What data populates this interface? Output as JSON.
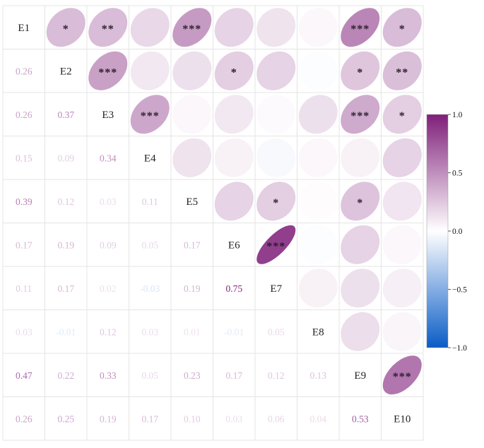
{
  "chart_data": {
    "type": "heatmap",
    "variables": [
      "E1",
      "E2",
      "E3",
      "E4",
      "E5",
      "E6",
      "E7",
      "E8",
      "E9",
      "E10"
    ],
    "coefficient_cells": [
      {
        "row": 2,
        "col": 1,
        "label": "0.26"
      },
      {
        "row": 3,
        "col": 1,
        "label": "0.26"
      },
      {
        "row": 3,
        "col": 2,
        "label": "0.37"
      },
      {
        "row": 4,
        "col": 1,
        "label": "0.15"
      },
      {
        "row": 4,
        "col": 2,
        "label": "0.09"
      },
      {
        "row": 4,
        "col": 3,
        "label": "0.34"
      },
      {
        "row": 5,
        "col": 1,
        "label": "0.39"
      },
      {
        "row": 5,
        "col": 2,
        "label": "0.12"
      },
      {
        "row": 5,
        "col": 3,
        "label": "0.03"
      },
      {
        "row": 5,
        "col": 4,
        "label": "0.11"
      },
      {
        "row": 6,
        "col": 1,
        "label": "0.17"
      },
      {
        "row": 6,
        "col": 2,
        "label": "0.19"
      },
      {
        "row": 6,
        "col": 3,
        "label": "0.09"
      },
      {
        "row": 6,
        "col": 4,
        "label": "0.05"
      },
      {
        "row": 6,
        "col": 5,
        "label": "0.17"
      },
      {
        "row": 7,
        "col": 1,
        "label": "0.11"
      },
      {
        "row": 7,
        "col": 2,
        "label": "0.17"
      },
      {
        "row": 7,
        "col": 3,
        "label": "0.02"
      },
      {
        "row": 7,
        "col": 4,
        "label": "-0.03"
      },
      {
        "row": 7,
        "col": 5,
        "label": "0.19"
      },
      {
        "row": 7,
        "col": 6,
        "label": "0.75"
      },
      {
        "row": 8,
        "col": 1,
        "label": "0.03"
      },
      {
        "row": 8,
        "col": 2,
        "label": "-0.01"
      },
      {
        "row": 8,
        "col": 3,
        "label": "0.12"
      },
      {
        "row": 8,
        "col": 4,
        "label": "0.03"
      },
      {
        "row": 8,
        "col": 5,
        "label": "0.01"
      },
      {
        "row": 8,
        "col": 6,
        "label": "-0.01"
      },
      {
        "row": 8,
        "col": 7,
        "label": "0.05"
      },
      {
        "row": 9,
        "col": 1,
        "label": "0.47"
      },
      {
        "row": 9,
        "col": 2,
        "label": "0.22"
      },
      {
        "row": 9,
        "col": 3,
        "label": "0.33"
      },
      {
        "row": 9,
        "col": 4,
        "label": "0.05"
      },
      {
        "row": 9,
        "col": 5,
        "label": "0.23"
      },
      {
        "row": 9,
        "col": 6,
        "label": "0.17"
      },
      {
        "row": 9,
        "col": 7,
        "label": "0.12"
      },
      {
        "row": 9,
        "col": 8,
        "label": "0.13"
      },
      {
        "row": 10,
        "col": 1,
        "label": "0.26"
      },
      {
        "row": 10,
        "col": 2,
        "label": "0.25"
      },
      {
        "row": 10,
        "col": 3,
        "label": "0.19"
      },
      {
        "row": 10,
        "col": 4,
        "label": "0.17"
      },
      {
        "row": 10,
        "col": 5,
        "label": "0.10"
      },
      {
        "row": 10,
        "col": 6,
        "label": "0.03"
      },
      {
        "row": 10,
        "col": 7,
        "label": "0.06"
      },
      {
        "row": 10,
        "col": 8,
        "label": "0.04"
      },
      {
        "row": 10,
        "col": 9,
        "label": "0.53"
      }
    ],
    "significance_stars": [
      {
        "row": 1,
        "col": 2,
        "stars": "*"
      },
      {
        "row": 1,
        "col": 3,
        "stars": "**"
      },
      {
        "row": 1,
        "col": 5,
        "stars": "***"
      },
      {
        "row": 1,
        "col": 9,
        "stars": "***"
      },
      {
        "row": 1,
        "col": 10,
        "stars": "*"
      },
      {
        "row": 2,
        "col": 3,
        "stars": "***"
      },
      {
        "row": 2,
        "col": 6,
        "stars": "*"
      },
      {
        "row": 2,
        "col": 9,
        "stars": "*"
      },
      {
        "row": 2,
        "col": 10,
        "stars": "**"
      },
      {
        "row": 3,
        "col": 4,
        "stars": "***"
      },
      {
        "row": 3,
        "col": 9,
        "stars": "***"
      },
      {
        "row": 3,
        "col": 10,
        "stars": "*"
      },
      {
        "row": 5,
        "col": 7,
        "stars": "*"
      },
      {
        "row": 5,
        "col": 9,
        "stars": "*"
      },
      {
        "row": 6,
        "col": 7,
        "stars": "***"
      },
      {
        "row": 9,
        "col": 10,
        "stars": "***"
      }
    ],
    "color_scale": {
      "range": [
        -1.0,
        1.0
      ],
      "tick_labels": [
        "1.0",
        "0.5",
        "0.0",
        "−0.5",
        "−1.0"
      ],
      "tick_values": [
        1.0,
        0.5,
        0.0,
        -0.5,
        -1.0
      ],
      "colors": {
        "negative": "#0a5cc6",
        "neutral": "#ffffff",
        "positive": "#7f1f7a"
      },
      "placement": "right"
    },
    "layout": "lower triangle: coefficient text; upper triangle: ellipses with significance stars; diagonal: variable names"
  }
}
